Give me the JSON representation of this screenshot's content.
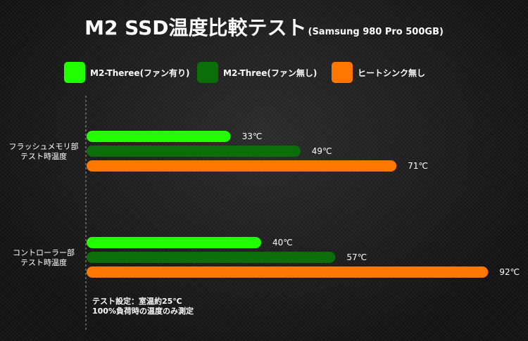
{
  "title": {
    "main": "M2 SSD温度比較テスト",
    "sub": "(Samsung 980 Pro 500GB)"
  },
  "note": [
    "テスト設定：室温約25℃",
    "100%負荷時の温度のみ測定"
  ],
  "colors": [
    "#22ff00",
    "#0b6e0b",
    "#ff7700"
  ],
  "chart_data": {
    "type": "bar",
    "orientation": "horizontal",
    "title": "M2 SSD温度比較テスト(Samsung 980 Pro 500GB)",
    "categories": [
      [
        "フラッシュメモリ部",
        "テスト時温度"
      ],
      [
        "コントローラー部",
        "テスト時温度"
      ]
    ],
    "series": [
      {
        "name": "M2-Theree(ファン有り)",
        "values": [
          33,
          40
        ],
        "color": "#22ff00"
      },
      {
        "name": "M2-Three(ファン無し)",
        "values": [
          49,
          57
        ],
        "color": "#0b6e0b"
      },
      {
        "name": "ヒートシンク無し",
        "values": [
          71,
          92
        ],
        "color": "#ff7700"
      }
    ],
    "value_suffix": "℃",
    "xlim": [
      0,
      100
    ],
    "grid": false,
    "legend_position": "top"
  }
}
